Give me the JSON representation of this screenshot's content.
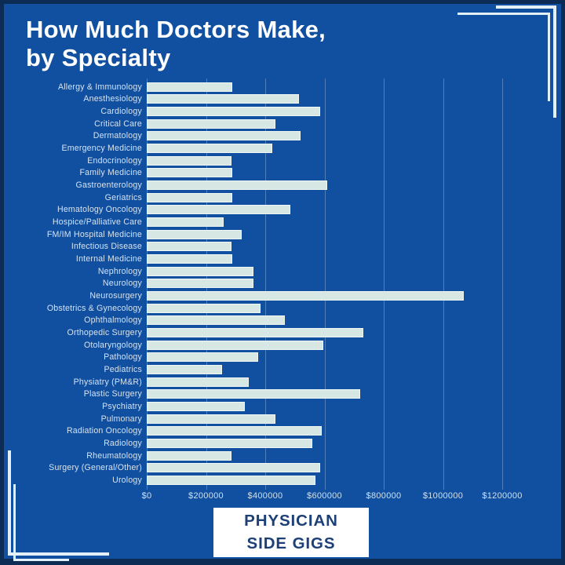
{
  "title": {
    "line1": "How Much Doctors Make,",
    "line2": "by Specialty"
  },
  "chart_data": {
    "type": "bar",
    "orientation": "horizontal",
    "title": "How Much Doctors Make, by Specialty",
    "xlabel": "",
    "ylabel": "",
    "xlim": [
      0,
      1240000
    ],
    "grid": "vertical",
    "legend": "none",
    "categories": [
      "Allergy & Immunology",
      "Anesthesiology",
      "Cardiology",
      "Critical Care",
      "Dermatology",
      "Emergency Medicine",
      "Endocrinology",
      "Family Medicine",
      "Gastroenterology",
      "Geriatrics",
      "Hematology Oncology",
      "Hospice/Palliative Care",
      "FM/IM Hospital Medicine",
      "Infectious Disease",
      "Internal Medicine",
      "Nephrology",
      "Neurology",
      "Neurosurgery",
      "Obstetrics & Gynecology",
      "Ophthalmology",
      "Orthopedic Surgery",
      "Otolaryngology",
      "Pathology",
      "Pediatrics",
      "Physiatry (PM&R)",
      "Plastic Surgery",
      "Psychiatry",
      "Pulmonary",
      "Radiation Oncology",
      "Radiology",
      "Rheumatology",
      "Surgery (General/Other)",
      "Urology"
    ],
    "values": [
      290000,
      515000,
      585000,
      435000,
      520000,
      425000,
      285000,
      290000,
      610000,
      290000,
      485000,
      260000,
      320000,
      285000,
      290000,
      360000,
      360000,
      1070000,
      385000,
      465000,
      730000,
      595000,
      375000,
      255000,
      345000,
      720000,
      330000,
      435000,
      590000,
      560000,
      285000,
      585000,
      570000
    ],
    "tick_labels": [
      "$0",
      "$200000",
      "$400000",
      "$600000",
      "$800000",
      "$1000000",
      "$1200000"
    ],
    "tick_values": [
      0,
      200000,
      400000,
      600000,
      800000,
      1000000,
      1200000
    ],
    "bar_color": "#d7e8e4",
    "background_color": "#1150a0",
    "frame_color": "#0c2c55",
    "label_color": "#d6e3f0",
    "title_color": "#ffffff"
  },
  "logo": {
    "line1": "PHYSICIAN",
    "line2": "SIDE GIGS"
  }
}
